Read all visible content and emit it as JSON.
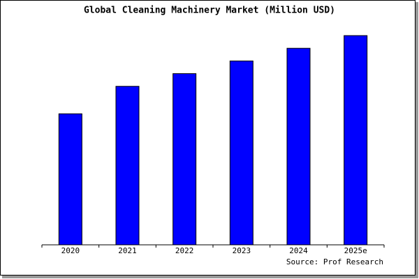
{
  "chart_data": {
    "type": "bar",
    "title": "Global Cleaning Machinery Market (Million USD)",
    "categories": [
      "2020",
      "2021",
      "2022",
      "2023",
      "2024",
      "2025e"
    ],
    "values": [
      62,
      75,
      81,
      87,
      93,
      99
    ],
    "color": "#0000ff",
    "ylim": [
      0,
      100
    ],
    "source": "Source: Prof Research"
  }
}
